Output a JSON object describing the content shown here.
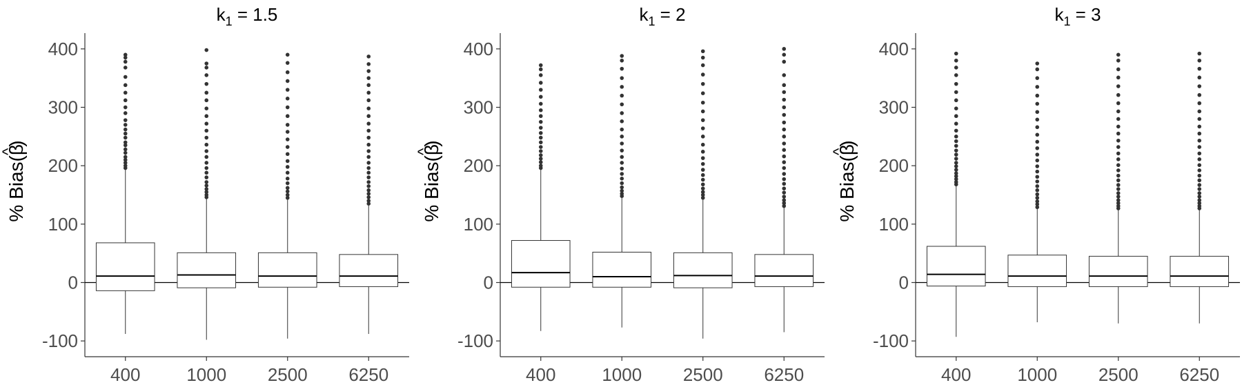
{
  "chart_data": [
    {
      "type": "boxplot",
      "title_main": "k",
      "title_sub": "1",
      "title_rest": " = 1.5",
      "ylabel": "% Bias(",
      "ylabel_symbol": "β",
      "ylabel_hat": "^",
      "ylabel_close": ")",
      "ylim": [
        -127,
        427
      ],
      "yticks": [
        -100,
        0,
        100,
        200,
        300,
        400
      ],
      "ytick_labels": [
        "-100",
        "0",
        "100",
        "200",
        "300",
        "400"
      ],
      "categories": [
        "400",
        "1000",
        "2500",
        "6250"
      ],
      "reference_line": 0,
      "boxes": [
        {
          "lower_whisker": -88,
          "q1": -14,
          "median": 11,
          "q3": 68,
          "upper_whisker": 193,
          "outliers": [
            196,
            200,
            205,
            210,
            215,
            222,
            228,
            235,
            240,
            248,
            255,
            262,
            270,
            278,
            290,
            300,
            312,
            325,
            338,
            352,
            368,
            378,
            385,
            390
          ]
        },
        {
          "lower_whisker": -98,
          "q1": -9,
          "median": 13,
          "q3": 51,
          "upper_whisker": 143,
          "outliers": [
            146,
            150,
            155,
            160,
            166,
            172,
            180,
            188,
            196,
            205,
            215,
            225,
            236,
            248,
            260,
            272,
            285,
            298,
            312,
            325,
            340,
            355,
            368,
            375,
            398
          ]
        },
        {
          "lower_whisker": -96,
          "q1": -8,
          "median": 11,
          "q3": 51,
          "upper_whisker": 142,
          "outliers": [
            145,
            150,
            156,
            162,
            170,
            178,
            188,
            198,
            208,
            220,
            232,
            245,
            258,
            270,
            285,
            300,
            315,
            330,
            345,
            360,
            376,
            390
          ]
        },
        {
          "lower_whisker": -88,
          "q1": -7,
          "median": 11,
          "q3": 48,
          "upper_whisker": 132,
          "outliers": [
            135,
            140,
            146,
            152,
            158,
            165,
            172,
            180,
            188,
            196,
            205,
            215,
            225,
            236,
            248,
            260,
            272,
            285,
            298,
            312,
            325,
            338,
            350,
            362,
            374,
            387
          ]
        }
      ]
    },
    {
      "type": "boxplot",
      "title_main": "k",
      "title_sub": "1",
      "title_rest": " = 2",
      "ylabel": "% Bias(",
      "ylabel_symbol": "β",
      "ylabel_hat": "^",
      "ylabel_close": ")",
      "ylim": [
        -127,
        427
      ],
      "yticks": [
        -100,
        0,
        100,
        200,
        300,
        400
      ],
      "ytick_labels": [
        "-100",
        "0",
        "100",
        "200",
        "300",
        "400"
      ],
      "categories": [
        "400",
        "1000",
        "2500",
        "6250"
      ],
      "reference_line": 0,
      "boxes": [
        {
          "lower_whisker": -83,
          "q1": -8,
          "median": 17,
          "q3": 72,
          "upper_whisker": 193,
          "outliers": [
            196,
            200,
            206,
            212,
            218,
            225,
            232,
            240,
            248,
            256,
            265,
            275,
            285,
            295,
            306,
            318,
            330,
            342,
            355,
            365,
            372
          ]
        },
        {
          "lower_whisker": -77,
          "q1": -8,
          "median": 10,
          "q3": 52,
          "upper_whisker": 145,
          "outliers": [
            148,
            152,
            157,
            163,
            170,
            178,
            186,
            195,
            205,
            215,
            226,
            238,
            250,
            262,
            276,
            290,
            305,
            320,
            335,
            350,
            366,
            380,
            388
          ]
        },
        {
          "lower_whisker": -96,
          "q1": -9,
          "median": 12,
          "q3": 51,
          "upper_whisker": 142,
          "outliers": [
            145,
            150,
            155,
            161,
            168,
            176,
            184,
            193,
            203,
            213,
            224,
            236,
            250,
            264,
            278,
            293,
            308,
            324,
            340,
            356,
            372,
            385,
            396
          ]
        },
        {
          "lower_whisker": -85,
          "q1": -7,
          "median": 11,
          "q3": 48,
          "upper_whisker": 128,
          "outliers": [
            131,
            136,
            141,
            147,
            154,
            161,
            169,
            177,
            186,
            196,
            206,
            216,
            227,
            238,
            250,
            262,
            274,
            287,
            300,
            313,
            326,
            338,
            355,
            378,
            390,
            400
          ]
        }
      ]
    },
    {
      "type": "boxplot",
      "title_main": "k",
      "title_sub": "1",
      "title_rest": " = 3",
      "ylabel": "% Bias(",
      "ylabel_symbol": "β",
      "ylabel_hat": "^",
      "ylabel_close": ")",
      "ylim": [
        -127,
        427
      ],
      "yticks": [
        -100,
        0,
        100,
        200,
        300,
        400
      ],
      "ytick_labels": [
        "-100",
        "0",
        "100",
        "200",
        "300",
        "400"
      ],
      "categories": [
        "400",
        "1000",
        "2500",
        "6250"
      ],
      "reference_line": 0,
      "boxes": [
        {
          "lower_whisker": -93,
          "q1": -6,
          "median": 14,
          "q3": 62,
          "upper_whisker": 165,
          "outliers": [
            168,
            172,
            177,
            182,
            187,
            193,
            199,
            205,
            212,
            219,
            226,
            234,
            242,
            250,
            260,
            272,
            285,
            298,
            312,
            326,
            340,
            355,
            368,
            380,
            392
          ]
        },
        {
          "lower_whisker": -68,
          "q1": -7,
          "median": 11,
          "q3": 47,
          "upper_whisker": 126,
          "outliers": [
            129,
            134,
            139,
            145,
            151,
            158,
            165,
            173,
            181,
            190,
            199,
            209,
            219,
            230,
            241,
            253,
            266,
            279,
            292,
            306,
            320,
            335,
            350,
            365,
            375
          ]
        },
        {
          "lower_whisker": -70,
          "q1": -7,
          "median": 11,
          "q3": 45,
          "upper_whisker": 124,
          "outliers": [
            127,
            131,
            136,
            141,
            147,
            153,
            160,
            167,
            175,
            183,
            192,
            201,
            211,
            221,
            232,
            243,
            255,
            267,
            280,
            293,
            307,
            321,
            336,
            351,
            365,
            380,
            390
          ]
        },
        {
          "lower_whisker": -70,
          "q1": -7,
          "median": 11,
          "q3": 45,
          "upper_whisker": 124,
          "outliers": [
            127,
            131,
            136,
            141,
            147,
            153,
            160,
            167,
            175,
            183,
            192,
            201,
            211,
            221,
            232,
            243,
            255,
            267,
            280,
            293,
            307,
            321,
            336,
            351,
            366,
            380,
            392
          ]
        }
      ]
    }
  ],
  "colors": {
    "axis": "#333333",
    "tick_text": "#4d4d4d",
    "title_text": "#000000",
    "box_fill": "#ffffff",
    "box_stroke": "#333333",
    "outlier": "#333333",
    "reference_line": "#000000"
  }
}
